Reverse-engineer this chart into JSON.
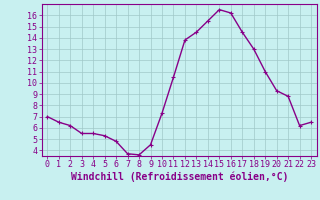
{
  "x": [
    0,
    1,
    2,
    3,
    4,
    5,
    6,
    7,
    8,
    9,
    10,
    11,
    12,
    13,
    14,
    15,
    16,
    17,
    18,
    19,
    20,
    21,
    22,
    23
  ],
  "y": [
    7.0,
    6.5,
    6.2,
    5.5,
    5.5,
    5.3,
    4.8,
    3.7,
    3.6,
    4.5,
    7.3,
    10.5,
    13.8,
    14.5,
    15.5,
    16.5,
    16.2,
    14.5,
    13.0,
    11.0,
    9.3,
    8.8,
    6.2,
    6.5
  ],
  "line_color": "#880088",
  "marker": "+",
  "bg_color": "#c8f0f0",
  "plot_bg_color": "#c8f0f0",
  "grid_color": "#a0c8c8",
  "xlabel": "Windchill (Refroidissement éolien,°C)",
  "xlim_min": -0.5,
  "xlim_max": 23.5,
  "ylim_min": 3.5,
  "ylim_max": 17.0,
  "yticks": [
    4,
    5,
    6,
    7,
    8,
    9,
    10,
    11,
    12,
    13,
    14,
    15,
    16
  ],
  "xticks": [
    0,
    1,
    2,
    3,
    4,
    5,
    6,
    7,
    8,
    9,
    10,
    11,
    12,
    13,
    14,
    15,
    16,
    17,
    18,
    19,
    20,
    21,
    22,
    23
  ],
  "tick_color": "#880088",
  "spine_color": "#880088",
  "font_size": 6,
  "xlabel_fontsize": 7,
  "linewidth": 1.0,
  "markersize": 3
}
